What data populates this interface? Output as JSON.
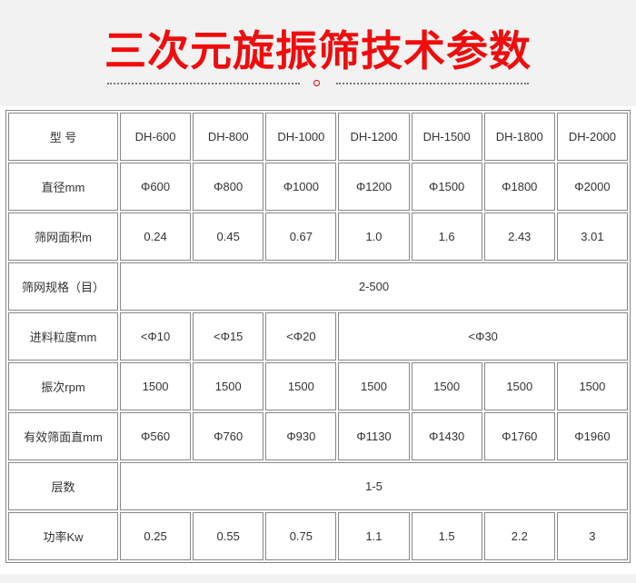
{
  "title": "三次元旋振筛技术参数",
  "table": {
    "models": {
      "label": "型 号",
      "values": [
        "DH-600",
        "DH-800",
        "DH-1000",
        "DH-1200",
        "DH-1500",
        "DH-1800",
        "DH-2000"
      ]
    },
    "diameter": {
      "label": "直径mm",
      "values": [
        "Φ600",
        "Φ800",
        "Φ1000",
        "Φ1200",
        "Φ1500",
        "Φ1800",
        "Φ2000"
      ]
    },
    "area": {
      "label": "筛网面积m",
      "values": [
        "0.24",
        "0.45",
        "0.67",
        "1.0",
        "1.6",
        "2.43",
        "3.01"
      ]
    },
    "mesh": {
      "label": "筛网规格（目）",
      "value": "2-500"
    },
    "feed": {
      "label": "进料粒度mm",
      "values": [
        "<Φ10",
        "<Φ15",
        "<Φ20",
        "<Φ30"
      ]
    },
    "vibration": {
      "label": "振次rpm",
      "values": [
        "1500",
        "1500",
        "1500",
        "1500",
        "1500",
        "1500",
        "1500"
      ]
    },
    "effective": {
      "label": "有效筛面直mm",
      "values": [
        "Φ560",
        "Φ760",
        "Φ930",
        "Φ1130",
        "Φ1430",
        "Φ1760",
        "Φ1960"
      ]
    },
    "layers": {
      "label": "层数",
      "value": "1-5"
    },
    "power": {
      "label": "功率Kw",
      "values": [
        "0.25",
        "0.55",
        "0.75",
        "1.1",
        "1.5",
        "2.2",
        "3"
      ]
    }
  }
}
